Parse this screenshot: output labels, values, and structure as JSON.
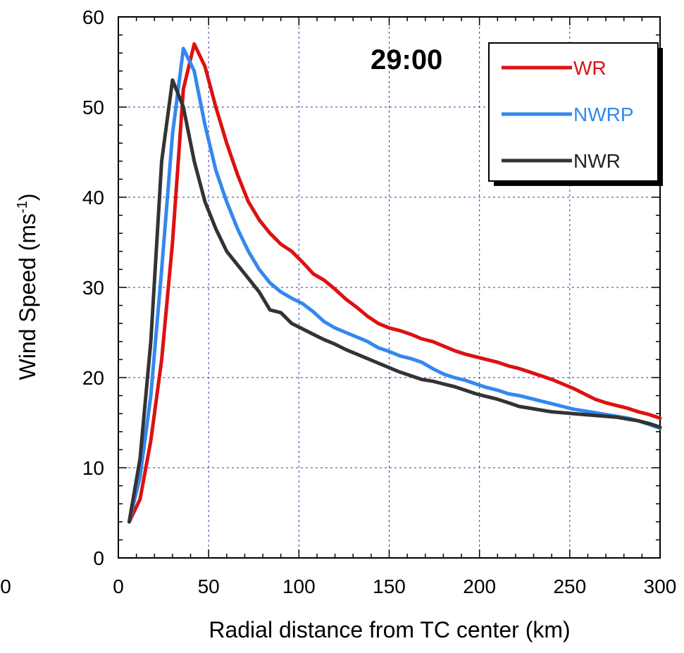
{
  "chart_data": {
    "type": "line",
    "title": "",
    "annotation": "29:00",
    "xlabel": "Radial distance from TC center (km)",
    "ylabel_main": "Wind Speed (ms",
    "ylabel_sup": "-1",
    "ylabel_close": ")",
    "xlim": [
      0,
      300
    ],
    "ylim": [
      0,
      60
    ],
    "x_ticks": [
      0,
      50,
      100,
      150,
      200,
      250,
      300
    ],
    "y_ticks": [
      0,
      10,
      20,
      30,
      40,
      50,
      60
    ],
    "extra_left_tick": "0",
    "grid": true,
    "legend_position": "top-right",
    "x": [
      6,
      12,
      18,
      24,
      30,
      36,
      42,
      48,
      54,
      60,
      66,
      72,
      78,
      84,
      90,
      96,
      102,
      108,
      114,
      120,
      126,
      132,
      138,
      144,
      150,
      156,
      162,
      168,
      174,
      180,
      186,
      192,
      198,
      204,
      210,
      216,
      222,
      228,
      234,
      240,
      246,
      252,
      258,
      264,
      270,
      276,
      282,
      288,
      294,
      300
    ],
    "series": [
      {
        "name": "WR",
        "color": "#dd1111",
        "values": [
          4.0,
          6.5,
          13.0,
          22.0,
          35.0,
          52.0,
          57.0,
          54.5,
          50.0,
          46.0,
          42.5,
          39.5,
          37.5,
          36.0,
          34.8,
          34.0,
          32.8,
          31.5,
          30.8,
          29.8,
          28.7,
          27.8,
          26.8,
          26.0,
          25.5,
          25.2,
          24.8,
          24.3,
          24.0,
          23.5,
          23.0,
          22.6,
          22.3,
          22.0,
          21.7,
          21.3,
          21.0,
          20.6,
          20.2,
          19.8,
          19.3,
          18.8,
          18.2,
          17.6,
          17.2,
          16.9,
          16.6,
          16.2,
          15.9,
          15.5
        ]
      },
      {
        "name": "NWRP",
        "color": "#3388ee",
        "values": [
          4.0,
          9.0,
          18.0,
          32.0,
          47.0,
          56.5,
          54.0,
          48.0,
          43.0,
          39.5,
          36.5,
          34.0,
          32.0,
          30.5,
          29.5,
          28.8,
          28.2,
          27.3,
          26.2,
          25.5,
          25.0,
          24.5,
          24.0,
          23.3,
          22.9,
          22.4,
          22.1,
          21.7,
          21.0,
          20.4,
          20.0,
          19.7,
          19.3,
          18.9,
          18.6,
          18.2,
          18.0,
          17.7,
          17.4,
          17.1,
          16.8,
          16.5,
          16.3,
          16.1,
          15.9,
          15.7,
          15.5,
          15.2,
          14.8,
          14.4
        ]
      },
      {
        "name": "NWR",
        "color": "#333333",
        "values": [
          4.0,
          11.0,
          24.0,
          44.0,
          53.0,
          50.0,
          44.0,
          39.5,
          36.5,
          34.0,
          32.5,
          31.0,
          29.5,
          27.5,
          27.2,
          26.0,
          25.4,
          24.8,
          24.2,
          23.7,
          23.1,
          22.6,
          22.1,
          21.6,
          21.1,
          20.6,
          20.2,
          19.8,
          19.6,
          19.3,
          19.0,
          18.6,
          18.2,
          17.9,
          17.6,
          17.2,
          16.8,
          16.6,
          16.4,
          16.2,
          16.1,
          16.0,
          15.9,
          15.8,
          15.7,
          15.6,
          15.4,
          15.2,
          14.9,
          14.5
        ]
      }
    ]
  }
}
